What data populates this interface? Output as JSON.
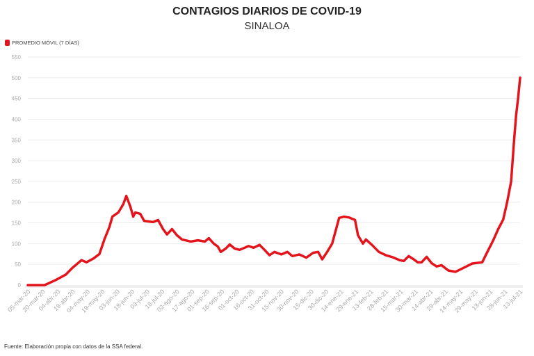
{
  "chart_data": {
    "type": "line",
    "title": "CONTAGIOS DIARIOS DE COVID-19",
    "subtitle": "SINALOA",
    "legend": [
      {
        "label": "PROMEDIO MÓVIL (7 DÍAS)",
        "color": "#e3141b"
      }
    ],
    "legend_placement": "top-left",
    "xlabel": "",
    "ylabel": "",
    "ylim": [
      0,
      550
    ],
    "yticks": [
      0,
      50,
      100,
      150,
      200,
      250,
      300,
      350,
      400,
      450,
      500,
      550
    ],
    "grid": true,
    "x_unit": "days since 05-mar-20",
    "xlim": [
      0,
      495
    ],
    "xtick_labels": [
      "05-mar-20",
      "20-mar-20",
      "04-abr-20",
      "19-abr-20",
      "04-may-20",
      "19-may-20",
      "03-jun-20",
      "18-jun-20",
      "03-jul-20",
      "18-jul-20",
      "02-ago-20",
      "17-ago-20",
      "01-sep-20",
      "16-sep-20",
      "01-oct-20",
      "16-oct-20",
      "31-oct-20",
      "15-nov-20",
      "30-nov-20",
      "15-dic-20",
      "30-dic-20",
      "14-ene-21",
      "29-ene-21",
      "13-feb-21",
      "28-feb-21",
      "15-mar-21",
      "30-mar-21",
      "14-abr-21",
      "29-abr-21",
      "14-may-21",
      "29-may-21",
      "13-jun-21",
      "28-jun-21",
      "13-jul-21"
    ],
    "series": [
      {
        "name": "PROMEDIO MÓVIL (7 DÍAS)",
        "color": "#e3141b",
        "x": [
          0,
          17,
          28,
          38,
          45,
          54,
          59,
          66,
          72,
          77,
          82,
          85,
          91,
          96,
          99,
          103,
          106,
          108,
          113,
          117,
          126,
          131,
          136,
          140,
          145,
          150,
          155,
          164,
          171,
          178,
          182,
          187,
          191,
          194,
          199,
          203,
          208,
          213,
          222,
          227,
          233,
          238,
          243,
          248,
          255,
          261,
          266,
          273,
          280,
          287,
          292,
          296,
          301,
          306,
          310,
          313,
          318,
          323,
          329,
          332,
          337,
          340,
          346,
          353,
          360,
          367,
          374,
          378,
          383,
          388,
          392,
          396,
          401,
          406,
          411,
          416,
          423,
          430,
          437,
          447,
          457,
          461,
          468,
          473,
          478,
          482,
          486,
          489,
          491,
          493,
          495
        ],
        "y": [
          0,
          0,
          12,
          25,
          42,
          60,
          55,
          64,
          75,
          110,
          140,
          165,
          175,
          195,
          215,
          190,
          165,
          175,
          172,
          155,
          152,
          157,
          135,
          122,
          135,
          120,
          110,
          105,
          108,
          105,
          113,
          100,
          93,
          80,
          88,
          98,
          88,
          85,
          94,
          90,
          97,
          85,
          72,
          80,
          74,
          80,
          70,
          74,
          66,
          78,
          80,
          62,
          80,
          100,
          135,
          162,
          165,
          163,
          157,
          120,
          100,
          110,
          97,
          80,
          72,
          67,
          60,
          58,
          70,
          62,
          55,
          55,
          68,
          53,
          45,
          48,
          35,
          32,
          40,
          52,
          55,
          75,
          108,
          135,
          158,
          200,
          250,
          350,
          410,
          450,
          500
        ]
      }
    ]
  },
  "footer": "Fuente: Elaboración propia con datos de la SSA federal."
}
